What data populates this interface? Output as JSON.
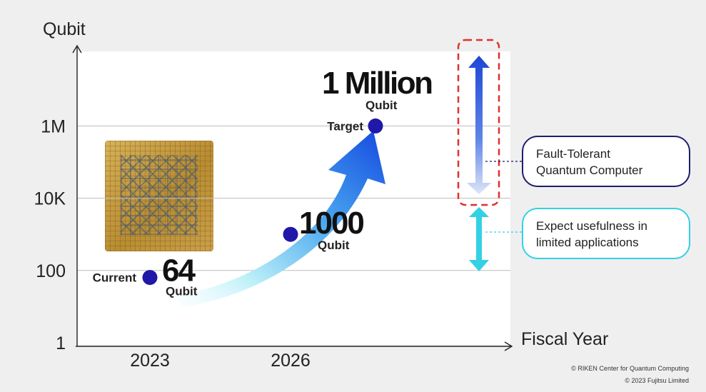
{
  "chart_data": {
    "type": "line",
    "ylabel": "Qubit",
    "xlabel": "Fiscal Year",
    "y_scale": "log",
    "y_ticks": [
      "1",
      "100",
      "10K",
      "1M"
    ],
    "x_ticks": [
      "2023",
      "2026"
    ],
    "grid": true,
    "points": [
      {
        "x_label": "2023",
        "value": 64,
        "big": "64",
        "unit": "Qubit",
        "tag": "Current"
      },
      {
        "x_label": "2026",
        "value": 1000,
        "big": "1000",
        "unit": "Qubit",
        "tag": ""
      },
      {
        "x_label": "",
        "value": 1000000,
        "big": "1 Million",
        "unit": "Qubit",
        "tag": "Target"
      }
    ],
    "colors": {
      "marker": "#1f18a8",
      "arrow_start": "#bff1f8",
      "arrow_end": "#1448e0",
      "ft_range": "#1d46d8",
      "ft_box": "#e0302b",
      "useful_range": "#34d0e4",
      "axis": "#222222"
    }
  },
  "annotations": {
    "fault_tolerant": "Fault-Tolerant\nQuantum Computer",
    "usefulness": "Expect usefulness in\nlimited applications"
  },
  "credits": [
    "© RIKEN Center for Quantum Computing",
    "© 2023 Fujitsu Limited"
  ]
}
